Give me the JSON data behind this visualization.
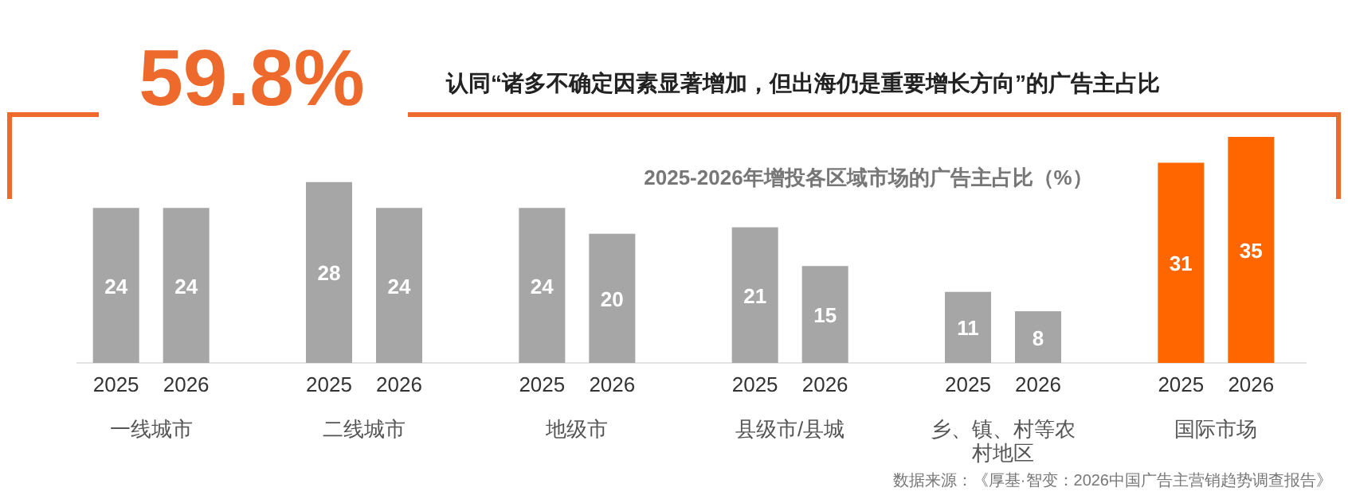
{
  "chart_data": {
    "type": "bar",
    "title": "2025-2026年增投各区域市场的广告主占比（%）",
    "annotations": [
      "59.8%",
      "认同“诸多不确定因素显著增加，但出海仍是重要增长方向”的广告主占比",
      "数据来源：《厚基·智变：2026中国广告主营销趋势调查报告》"
    ],
    "categories": [
      "一线城市",
      "二线城市",
      "地级市",
      "县级市/县城",
      "乡、镇、村等农村地区",
      "国际市场"
    ],
    "series": [
      {
        "name": "2025",
        "colors": [
          "#a6a6a6",
          "#a6a6a6",
          "#a6a6a6",
          "#a6a6a6",
          "#a6a6a6",
          "#ff6600"
        ],
        "values": [
          24,
          28,
          24,
          21,
          11,
          31
        ]
      },
      {
        "name": "2026",
        "colors": [
          "#a6a6a6",
          "#a6a6a6",
          "#a6a6a6",
          "#a6a6a6",
          "#a6a6a6",
          "#ff6600"
        ],
        "values": [
          24,
          24,
          20,
          15,
          8,
          35
        ]
      }
    ],
    "data_labels": true
  }
}
